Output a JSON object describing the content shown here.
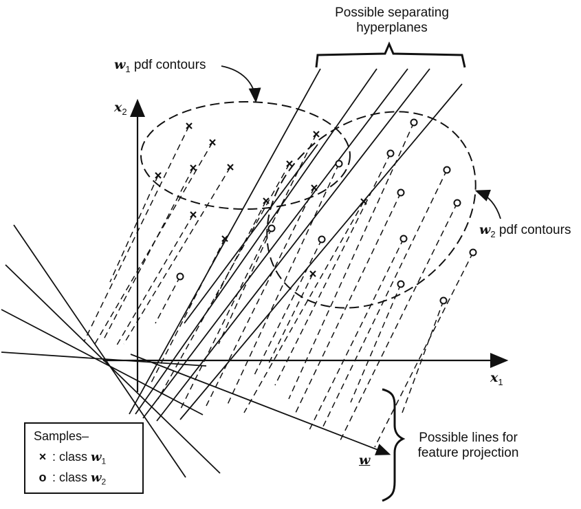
{
  "labels": {
    "separating_title_line1": "Possible separating",
    "separating_title_line2": "hyperplanes",
    "w1_contours": "pdf contours",
    "w1_symbol": "w",
    "w1_sub": "1",
    "w2_contours": "pdf contours",
    "w2_symbol": "w",
    "w2_sub": "2",
    "x1_axis": "x",
    "x1_sub": "1",
    "x2_axis": "x",
    "x2_sub": "2",
    "projection_line1": "Possible lines for",
    "projection_line2": "feature projection",
    "w_vector": "w"
  },
  "legend": {
    "title": "Samples–",
    "class1_marker": "×",
    "class1_text": ": class",
    "class1_symbol": "w",
    "class1_sub": "1",
    "class2_marker": "o",
    "class2_text": ": class",
    "class2_symbol": "w",
    "class2_sub": "2"
  },
  "colors": {
    "ink": "#111111",
    "background": "#ffffff"
  }
}
